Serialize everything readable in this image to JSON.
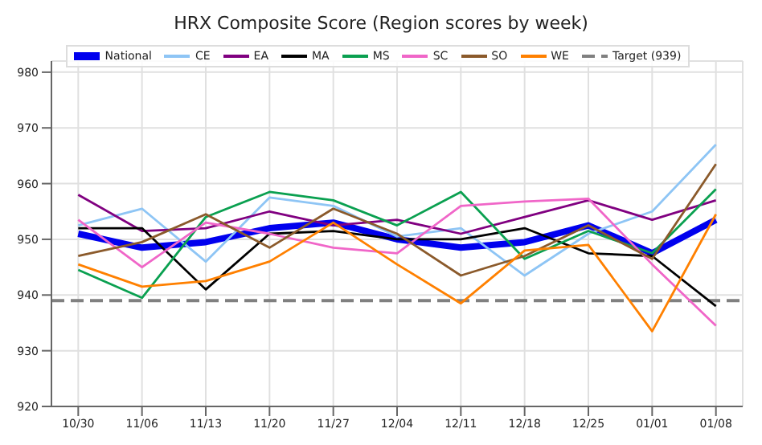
{
  "chart_data": {
    "type": "line",
    "title": "HRX Composite Score (Region scores by week)",
    "categories": [
      "10/30",
      "11/06",
      "11/13",
      "11/20",
      "11/27",
      "12/04",
      "12/11",
      "12/18",
      "12/25",
      "01/01",
      "01/08"
    ],
    "series": [
      {
        "name": "National",
        "color": "#0000ee",
        "values": [
          951,
          948.5,
          949.5,
          952,
          953,
          950,
          948.5,
          949.5,
          952.5,
          947.5,
          953.5
        ]
      },
      {
        "name": "CE",
        "color": "#8ec5f5",
        "values": [
          952.5,
          955.5,
          946,
          957.5,
          956,
          950.5,
          952,
          943.5,
          951,
          955,
          967
        ]
      },
      {
        "name": "EA",
        "color": "#800080",
        "values": [
          958,
          951.5,
          952,
          955,
          952.5,
          953.5,
          951,
          954,
          957,
          953.5,
          957
        ]
      },
      {
        "name": "MA",
        "color": "#000000",
        "values": [
          952,
          952,
          941,
          951,
          951.5,
          950,
          950,
          952,
          947.5,
          947,
          938
        ]
      },
      {
        "name": "MS",
        "color": "#0aa050",
        "values": [
          944.5,
          939.5,
          954,
          958.5,
          957,
          952.5,
          958.5,
          946.5,
          951.5,
          947.5,
          959
        ]
      },
      {
        "name": "SC",
        "color": "#f066c8",
        "values": [
          953.5,
          945,
          953,
          951,
          948.5,
          947.5,
          956,
          956.8,
          957.3,
          945.5,
          934.5
        ]
      },
      {
        "name": "SO",
        "color": "#8b5a2b",
        "values": [
          947,
          949.5,
          954.5,
          948.5,
          955.5,
          951,
          943.5,
          947,
          952.5,
          946.5,
          963.5
        ]
      },
      {
        "name": "WE",
        "color": "#ff8000",
        "values": [
          945.5,
          941.5,
          942.5,
          946,
          953,
          945.5,
          938.5,
          948,
          949,
          933.5,
          954.5
        ]
      }
    ],
    "ref_lines": [
      {
        "axis": "y",
        "value": 939,
        "label": "Target (939)",
        "color": "#808080",
        "line_style": "dashed"
      }
    ],
    "ylim": [
      920,
      982
    ],
    "yticks": [
      920,
      930,
      940,
      950,
      960,
      970,
      980
    ],
    "grid": true,
    "legend": "top",
    "line_style": "solid",
    "marker": "none"
  }
}
